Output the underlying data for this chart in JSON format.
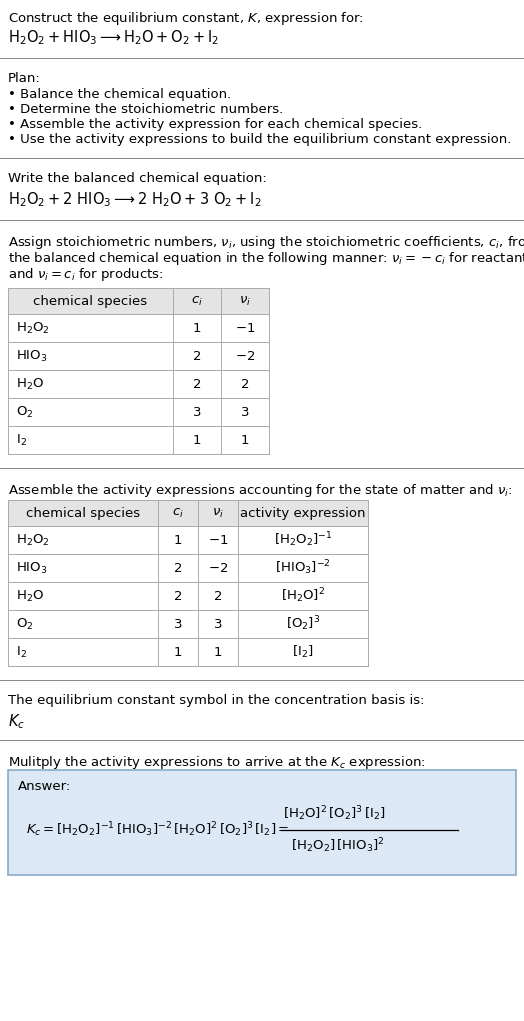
{
  "bg_color": "#ffffff",
  "text_color": "#000000",
  "title_line1": "Construct the equilibrium constant, $K$, expression for:",
  "title_line2": "$\\mathrm{H_2O_2 + HIO_3 \\longrightarrow H_2O + O_2 + I_2}$",
  "plan_header": "Plan:",
  "plan_bullets": [
    "• Balance the chemical equation.",
    "• Determine the stoichiometric numbers.",
    "• Assemble the activity expression for each chemical species.",
    "• Use the activity expressions to build the equilibrium constant expression."
  ],
  "balanced_header": "Write the balanced chemical equation:",
  "balanced_eq": "$\\mathrm{H_2O_2 + 2\\ HIO_3 \\longrightarrow 2\\ H_2O + 3\\ O_2 + I_2}$",
  "stoich_intro_parts": [
    "Assign stoichiometric numbers, $\\nu_i$, using the stoichiometric coefficients, $c_i$, from",
    "the balanced chemical equation in the following manner: $\\nu_i = -c_i$ for reactants",
    "and $\\nu_i = c_i$ for products:"
  ],
  "table1_headers": [
    "chemical species",
    "$c_i$",
    "$\\nu_i$"
  ],
  "table1_rows": [
    [
      "$\\mathrm{H_2O_2}$",
      "1",
      "$-1$"
    ],
    [
      "$\\mathrm{HIO_3}$",
      "2",
      "$-2$"
    ],
    [
      "$\\mathrm{H_2O}$",
      "2",
      "2"
    ],
    [
      "$\\mathrm{O_2}$",
      "3",
      "3"
    ],
    [
      "$\\mathrm{I_2}$",
      "1",
      "1"
    ]
  ],
  "activity_intro": "Assemble the activity expressions accounting for the state of matter and $\\nu_i$:",
  "table2_headers": [
    "chemical species",
    "$c_i$",
    "$\\nu_i$",
    "activity expression"
  ],
  "table2_rows": [
    [
      "$\\mathrm{H_2O_2}$",
      "1",
      "$-1$",
      "$[\\mathrm{H_2O_2}]^{-1}$"
    ],
    [
      "$\\mathrm{HIO_3}$",
      "2",
      "$-2$",
      "$[\\mathrm{HIO_3}]^{-2}$"
    ],
    [
      "$\\mathrm{H_2O}$",
      "2",
      "2",
      "$[\\mathrm{H_2O}]^{2}$"
    ],
    [
      "$\\mathrm{O_2}$",
      "3",
      "3",
      "$[\\mathrm{O_2}]^{3}$"
    ],
    [
      "$\\mathrm{I_2}$",
      "1",
      "1",
      "$[\\mathrm{I_2}]$"
    ]
  ],
  "kc_intro": "The equilibrium constant symbol in the concentration basis is:",
  "kc_symbol": "$K_c$",
  "multiply_intro": "Mulitply the activity expressions to arrive at the $K_c$ expression:",
  "answer_label": "Answer:",
  "answer_box_color": "#dce8f5",
  "answer_box_border": "#8aaac8",
  "kc_expr_left": "$K_c = [\\mathrm{H_2O_2}]^{-1}\\,[\\mathrm{HIO_3}]^{-2}\\,[\\mathrm{H_2O}]^{2}\\,[\\mathrm{O_2}]^{3}\\,[\\mathrm{I_2}] = $",
  "kc_expr_frac_num": "$[\\mathrm{H_2O}]^{2}\\,[\\mathrm{O_2}]^{3}\\,[\\mathrm{I_2}]$",
  "kc_expr_frac_den": "$[\\mathrm{H_2O_2}]\\,[\\mathrm{HIO_3}]^{2}$",
  "table_header_bg": "#e4e4e4",
  "table_row_bg": "#ffffff",
  "table_border": "#aaaaaa",
  "sep_color": "#888888",
  "font_size": 9.5,
  "font_size_eq": 10.5,
  "font_size_table": 9.5
}
